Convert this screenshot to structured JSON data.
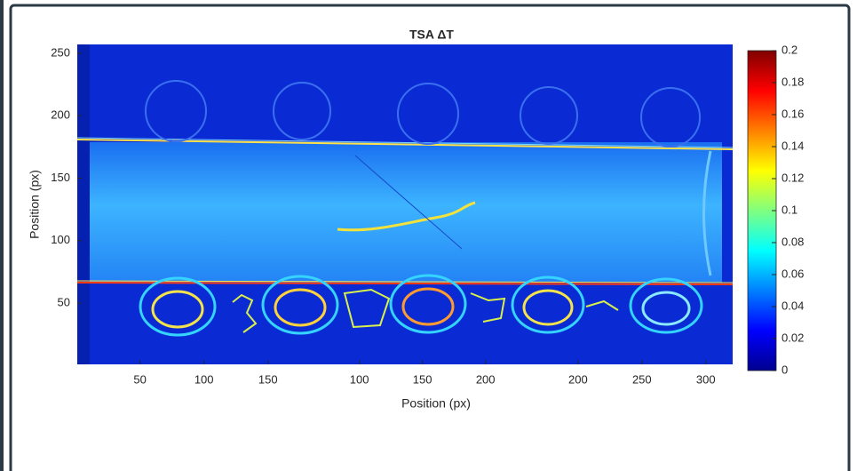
{
  "chart_data": {
    "type": "image",
    "title": "TSA ΔT",
    "xlabel": "Position (px)",
    "ylabel": "Position (px)",
    "ylim": [
      1,
      257
    ],
    "yticks": [
      50,
      100,
      150,
      200,
      250
    ],
    "panels": [
      {
        "xlim": [
          1,
          180
        ],
        "xticks": [
          50,
          100,
          150
        ]
      },
      {
        "xlim": [
          58,
          246
        ],
        "xticks": [
          100,
          150,
          200
        ]
      },
      {
        "xlim": [
          173,
          321
        ],
        "xticks": [
          200,
          250,
          300
        ]
      }
    ],
    "colorbar": {
      "clim": [
        0,
        0.2
      ],
      "ticks": [
        0,
        0.02,
        0.04,
        0.06,
        0.08,
        0.1,
        0.12,
        0.14,
        0.16,
        0.18,
        0.2
      ],
      "colormap": [
        "#00008f",
        "#0000ff",
        "#0080ff",
        "#00ffff",
        "#80ff80",
        "#ffff00",
        "#ff8000",
        "#ff0000",
        "#800000"
      ]
    }
  }
}
